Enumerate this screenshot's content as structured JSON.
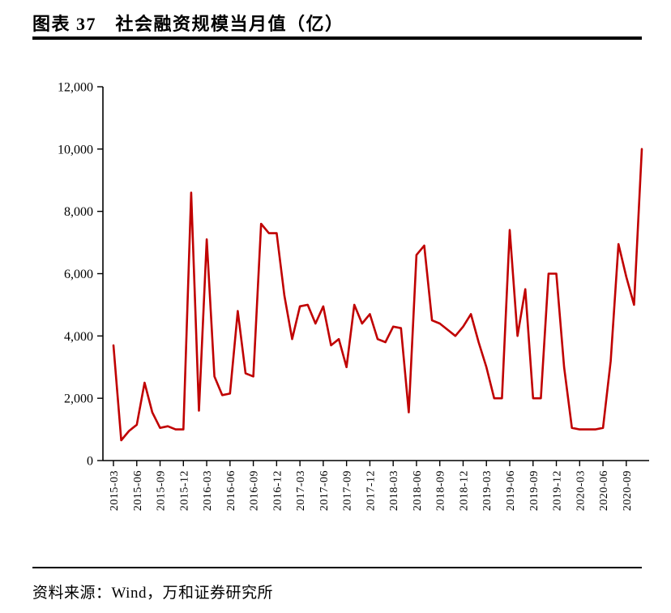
{
  "header": {
    "title": "图表 37　社会融资规模当月值（亿）"
  },
  "footer": {
    "source": "资料来源：Wind，万和证券研究所"
  },
  "chart_data": {
    "type": "line",
    "title": "社会融资规模当月值（亿）",
    "series_name": "社会融资规模当月值",
    "line_color": "#C00000",
    "axis_color": "#000000",
    "grid": false,
    "legend_position": "none",
    "ylim": [
      0,
      12000
    ],
    "ytick_step": 2000,
    "ytick_labels": [
      "0",
      "2,000",
      "4,000",
      "6,000",
      "8,000",
      "10,000",
      "12,000"
    ],
    "xtick_every": 3,
    "x": [
      "2015-03",
      "2015-04",
      "2015-05",
      "2015-06",
      "2015-07",
      "2015-08",
      "2015-09",
      "2015-10",
      "2015-11",
      "2015-12",
      "2016-01",
      "2016-02",
      "2016-03",
      "2016-04",
      "2016-05",
      "2016-06",
      "2016-07",
      "2016-08",
      "2016-09",
      "2016-10",
      "2016-11",
      "2016-12",
      "2017-01",
      "2017-02",
      "2017-03",
      "2017-04",
      "2017-05",
      "2017-06",
      "2017-07",
      "2017-08",
      "2017-09",
      "2017-10",
      "2017-11",
      "2017-12",
      "2018-01",
      "2018-02",
      "2018-03",
      "2018-04",
      "2018-05",
      "2018-06",
      "2018-07",
      "2018-08",
      "2018-09",
      "2018-10",
      "2018-11",
      "2018-12",
      "2019-01",
      "2019-02",
      "2019-03",
      "2019-04",
      "2019-05",
      "2019-06",
      "2019-07",
      "2019-08",
      "2019-09",
      "2019-10",
      "2019-11",
      "2019-12",
      "2020-01",
      "2020-02",
      "2020-03",
      "2020-04",
      "2020-05",
      "2020-06",
      "2020-07",
      "2020-08",
      "2020-09",
      "2020-10",
      "2020-11"
    ],
    "values": [
      3700,
      650,
      950,
      1150,
      2500,
      1550,
      1050,
      1100,
      1000,
      1000,
      8600,
      1600,
      7100,
      2700,
      2100,
      2150,
      4800,
      2800,
      2700,
      7600,
      7300,
      7300,
      5300,
      3900,
      4950,
      5000,
      4400,
      4950,
      3700,
      3900,
      3000,
      5000,
      4400,
      4700,
      3900,
      3800,
      4300,
      4250,
      1550,
      6600,
      6900,
      4500,
      4400,
      4200,
      4000,
      4300,
      4700,
      3800,
      3000,
      2000,
      2000,
      7400,
      4000,
      5500,
      2000,
      2000,
      6000,
      6000,
      3000,
      1050,
      1000,
      1000,
      1000,
      1050,
      3200,
      6950,
      5900,
      5000,
      10000
    ]
  }
}
